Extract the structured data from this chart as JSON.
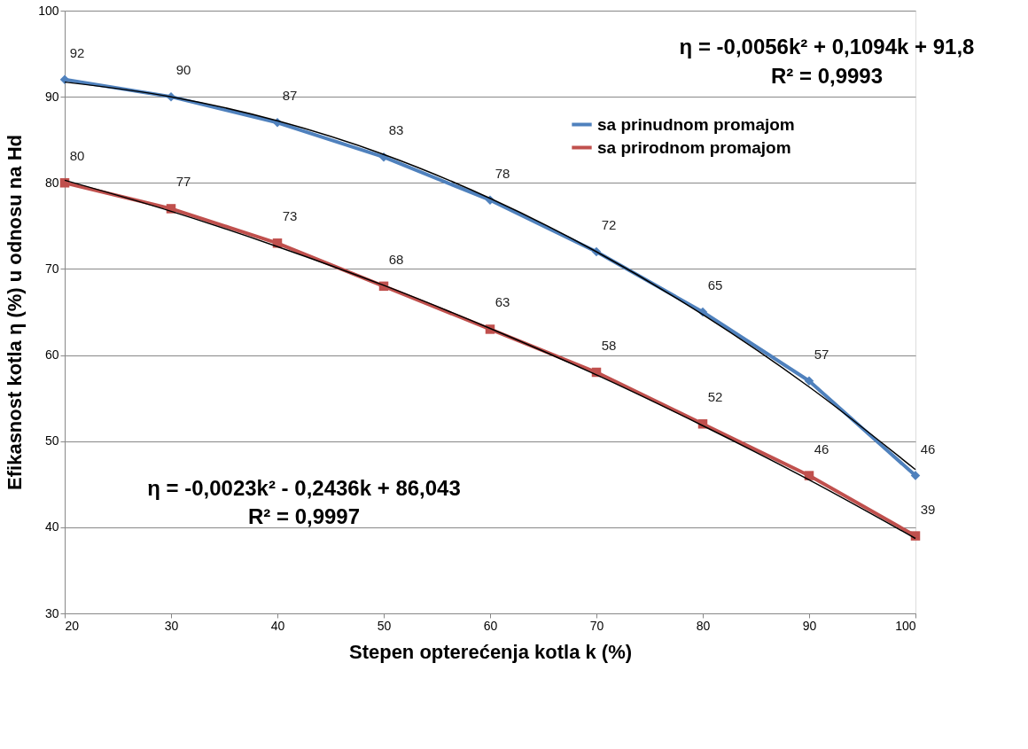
{
  "chart_data": {
    "type": "line",
    "xlabel": "Stepen opterećenja  kotla  k (%)",
    "ylabel": "Efikasnost  kotla η (%) u odnosu na Hd",
    "x": [
      20,
      30,
      40,
      50,
      60,
      70,
      80,
      90,
      100
    ],
    "series": [
      {
        "name": "sa prinudnom promajom",
        "color": "#4f81bd",
        "marker": "diamond",
        "values": [
          92,
          90,
          87,
          83,
          78,
          72,
          65,
          57,
          46
        ],
        "value_labels": [
          "92",
          "90",
          "87",
          "83",
          "78",
          "72",
          "65",
          "57",
          "46"
        ]
      },
      {
        "name": "sa prirodnom promajom",
        "color": "#c0504d",
        "marker": "square",
        "values": [
          80,
          77,
          73,
          68,
          63,
          58,
          52,
          46,
          39
        ],
        "value_labels": [
          "80",
          "77",
          "73",
          "68",
          "63",
          "58",
          "52",
          "46",
          "39"
        ]
      },
      {
        "type": "line",
        "color": "#000000",
        "marker": "none",
        "values": [
          91.7,
          90.0,
          87.2,
          83.3,
          78.2,
          72.0,
          64.7,
          56.3,
          46.7
        ]
      },
      {
        "type": "line",
        "color": "#000000",
        "marker": "none",
        "values": [
          80.3,
          76.7,
          72.6,
          68.1,
          63.1,
          57.7,
          51.8,
          45.5,
          38.7
        ]
      }
    ],
    "annotations": [
      "η = -0,0056k² + 0,1094k + 91,8",
      "R² = 0,9993",
      "η = -0,0023k² - 0,2436k + 86,043",
      "R² = 0,9997"
    ],
    "xlim": [
      20,
      100
    ],
    "xticks": [
      20,
      30,
      40,
      50,
      60,
      70,
      80,
      90,
      100
    ],
    "ylim": [
      30,
      100
    ],
    "yticks": [
      30,
      40,
      50,
      60,
      70,
      80,
      90,
      100
    ],
    "grid": "y",
    "legend": "top right",
    "line_style": "solid"
  }
}
